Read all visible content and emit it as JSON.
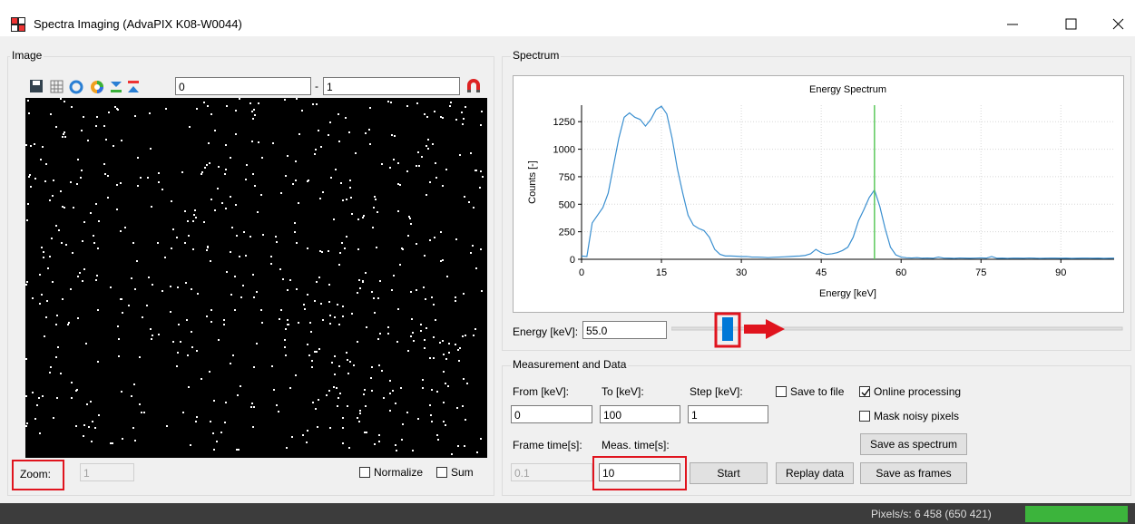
{
  "window": {
    "title": "Spectra Imaging (AdvaPIX K08-W0044)"
  },
  "image_panel": {
    "title": "Image",
    "range_from": "0",
    "range_separator": "-",
    "range_to": "1",
    "zoom_label": "Zoom:",
    "zoom_value": "1",
    "normalize": {
      "label": "Normalize",
      "checked": false
    },
    "sum": {
      "label": "Sum",
      "checked": false
    }
  },
  "spectrum_panel": {
    "title": "Spectrum",
    "energy_label": "Energy [keV]:",
    "energy_value": "55.0"
  },
  "chart_data": {
    "type": "line",
    "title": "Energy Spectrum",
    "x_label": "Energy [keV]",
    "y_label": "Counts [-]",
    "x": [
      0,
      1,
      2,
      3,
      4,
      5,
      6,
      7,
      8,
      9,
      10,
      11,
      12,
      13,
      14,
      15,
      16,
      17,
      18,
      19,
      20,
      21,
      22,
      23,
      24,
      25,
      26,
      27,
      28,
      29,
      30,
      31,
      32,
      33,
      34,
      35,
      36,
      37,
      38,
      39,
      40,
      41,
      42,
      43,
      44,
      45,
      46,
      47,
      48,
      49,
      50,
      51,
      52,
      53,
      54,
      55,
      56,
      57,
      58,
      59,
      60,
      61,
      62,
      63,
      64,
      65,
      66,
      67,
      68,
      69,
      70,
      71,
      72,
      73,
      74,
      75,
      76,
      77,
      78,
      79,
      80,
      81,
      82,
      83,
      84,
      85,
      86,
      87,
      88,
      89,
      90,
      91,
      92,
      93,
      94,
      95,
      96,
      97,
      98,
      99,
      100
    ],
    "values": [
      30,
      25,
      330,
      400,
      470,
      600,
      850,
      1100,
      1290,
      1330,
      1290,
      1270,
      1210,
      1270,
      1360,
      1390,
      1320,
      1100,
      820,
      600,
      400,
      310,
      280,
      260,
      200,
      90,
      45,
      30,
      30,
      28,
      25,
      25,
      20,
      20,
      18,
      15,
      18,
      20,
      22,
      25,
      28,
      30,
      35,
      50,
      90,
      60,
      45,
      50,
      60,
      80,
      110,
      200,
      350,
      450,
      560,
      630,
      480,
      280,
      110,
      40,
      20,
      14,
      12,
      15,
      10,
      12,
      9,
      20,
      11,
      10,
      8,
      12,
      10,
      9,
      11,
      13,
      10,
      25,
      9,
      10,
      8,
      11,
      10,
      9,
      12,
      10,
      8,
      9,
      11,
      10,
      9,
      10,
      8,
      9,
      10,
      11,
      9,
      10,
      8,
      9,
      10
    ],
    "color": "#3a8fd0",
    "marker_x": 55,
    "marker_color": "#5cc85c",
    "xlim": [
      0,
      100
    ],
    "ylim": [
      0,
      1400
    ],
    "xticks": [
      0,
      15,
      30,
      45,
      60,
      75,
      90
    ],
    "yticks": [
      0,
      250,
      500,
      750,
      1000,
      1250
    ],
    "grid": true
  },
  "measurement": {
    "title": "Measurement and Data",
    "from_label": "From [keV]:",
    "to_label": "To [keV]:",
    "step_label": "Step [keV]:",
    "from_value": "0",
    "to_value": "100",
    "step_value": "1",
    "save_to_file": {
      "label": "Save to file",
      "checked": false
    },
    "online_processing": {
      "label": "Online processing",
      "checked": true
    },
    "mask_noisy_pixels": {
      "label": "Mask noisy pixels",
      "checked": false
    },
    "frame_time_label": "Frame time[s]:",
    "meas_time_label": "Meas. time[s]:",
    "frame_time_value": "0.1",
    "meas_time_value": "10",
    "start_button": "Start",
    "replay_button": "Replay data",
    "save_spectrum_button": "Save as spectrum",
    "save_frames_button": "Save as frames"
  },
  "status_bar": {
    "pixels_per_second": "Pixels/s: 6 458 (650 421)"
  }
}
